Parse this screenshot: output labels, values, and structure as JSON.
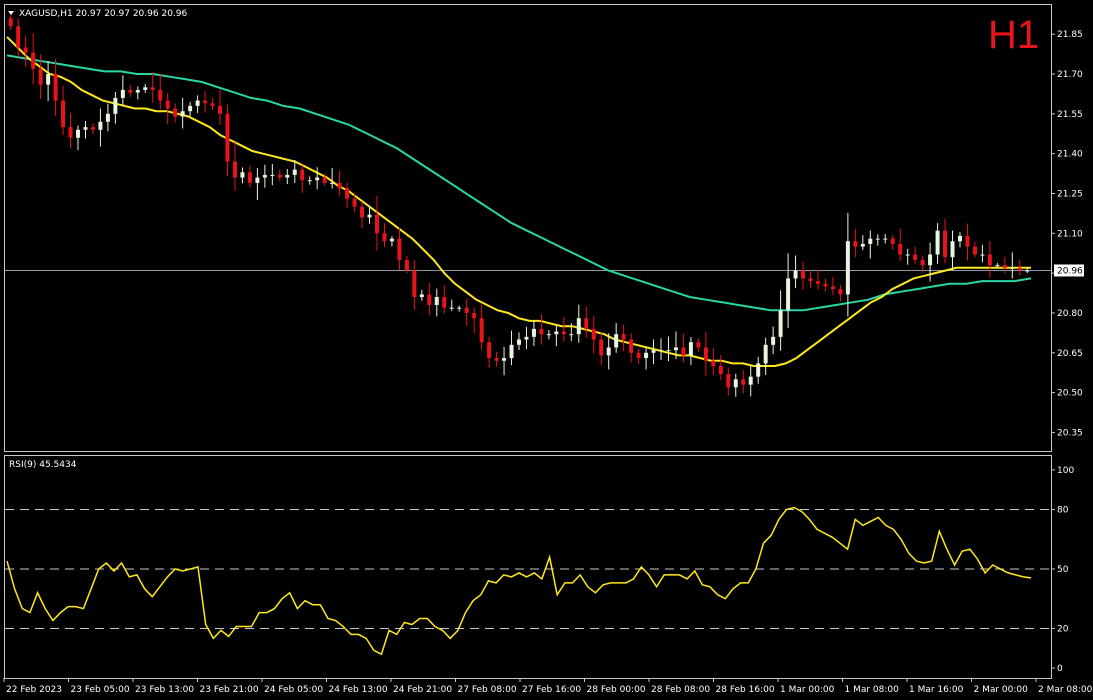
{
  "header": {
    "symbol_line": "XAGUSD,H1  20.97 20.97 20.96 20.96",
    "timeframe_badge": "H1",
    "rsi_label": "RSI(9) 45.5434"
  },
  "colors": {
    "background": "#000000",
    "bull_candle": "#e8f5e0",
    "bear_candle": "#e8141a",
    "ma_fast": "#ffe81a",
    "ma_slow": "#28d6a8",
    "rsi_line": "#ffe81a",
    "current_price_line": "#8c9aa8",
    "timeframe_badge": "#e8141a"
  },
  "chart_data": [
    {
      "type": "candlestick",
      "symbol": "XAGUSD",
      "timeframe": "H1",
      "ylim": [
        20.28,
        21.96
      ],
      "y_ticks": [
        "21.85",
        "21.70",
        "21.55",
        "21.40",
        "21.25",
        "21.10",
        "20.95",
        "20.80",
        "20.65",
        "20.50",
        "20.35"
      ],
      "current_price": "20.96",
      "x_ticks": [
        "22 Feb 2023",
        "23 Feb 05:00",
        "23 Feb 13:00",
        "23 Feb 21:00",
        "24 Feb 05:00",
        "24 Feb 13:00",
        "24 Feb 21:00",
        "27 Feb 08:00",
        "27 Feb 16:00",
        "28 Feb 00:00",
        "28 Feb 08:00",
        "28 Feb 16:00",
        "1 Mar 00:00",
        "1 Mar 08:00",
        "1 Mar 16:00",
        "2 Mar 00:00",
        "2 Mar 08:00"
      ],
      "close": [
        21.88,
        21.8,
        21.78,
        21.72,
        21.66,
        21.7,
        21.6,
        21.5,
        21.46,
        21.49,
        21.5,
        21.49,
        21.52,
        21.55,
        21.61,
        21.64,
        21.63,
        21.64,
        21.65,
        21.64,
        21.6,
        21.57,
        21.54,
        21.56,
        21.58,
        21.6,
        21.59,
        21.58,
        21.55,
        21.37,
        21.31,
        21.33,
        21.29,
        21.31,
        21.32,
        21.32,
        21.31,
        21.32,
        21.34,
        21.3,
        21.3,
        21.31,
        21.29,
        21.29,
        21.27,
        21.23,
        21.2,
        21.16,
        21.17,
        21.1,
        21.07,
        21.08,
        21.0,
        20.96,
        20.86,
        20.87,
        20.83,
        20.86,
        20.82,
        20.82,
        20.82,
        20.8,
        20.78,
        20.69,
        20.63,
        20.62,
        20.63,
        20.68,
        20.7,
        20.71,
        20.74,
        20.72,
        20.72,
        20.73,
        20.72,
        20.72,
        20.78,
        20.74,
        20.7,
        20.64,
        20.67,
        20.72,
        20.7,
        20.65,
        20.63,
        20.65,
        20.66,
        20.66,
        20.66,
        20.67,
        20.64,
        20.69,
        20.67,
        20.62,
        20.6,
        20.57,
        20.52,
        20.55,
        20.53,
        20.56,
        20.61,
        20.68,
        20.71,
        20.81,
        20.93,
        20.96,
        20.93,
        20.92,
        20.91,
        20.9,
        20.89,
        20.87,
        21.07,
        21.05,
        21.06,
        21.08,
        21.08,
        21.08,
        21.06,
        21.02,
        21.02,
        21.0,
        20.98,
        21.02,
        21.11,
        21.01,
        21.07,
        21.09,
        21.05,
        21.02,
        21.02,
        20.98,
        20.98,
        20.97,
        20.97,
        20.96,
        20.96
      ],
      "series": [
        {
          "name": "",
          "type": "line",
          "values": [
            21.84,
            21.8,
            21.76,
            21.73,
            21.7,
            21.69,
            21.67,
            21.64,
            21.62,
            21.6,
            21.59,
            21.58,
            21.57,
            21.57,
            21.56,
            21.56,
            21.55,
            21.54,
            21.52,
            21.5,
            21.47,
            21.45,
            21.43,
            21.41,
            21.4,
            21.39,
            21.38,
            21.37,
            21.35,
            21.33,
            21.31,
            21.28,
            21.26,
            21.23,
            21.2,
            21.17,
            21.14,
            21.11,
            21.08,
            21.04,
            21.0,
            20.95,
            20.91,
            20.88,
            20.85,
            20.83,
            20.81,
            20.8,
            20.78,
            20.77,
            20.77,
            20.76,
            20.75,
            20.75,
            20.74,
            20.73,
            20.72,
            20.7,
            20.69,
            20.68,
            20.67,
            20.66,
            20.65,
            20.64,
            20.64,
            20.63,
            20.62,
            20.62,
            20.61,
            20.61,
            20.6,
            20.6,
            20.6,
            20.61,
            20.63,
            20.66,
            20.69,
            20.72,
            20.75,
            20.78,
            20.81,
            20.84,
            20.86,
            20.89,
            20.91,
            20.93,
            20.94,
            20.95,
            20.96,
            20.97,
            20.97,
            20.97,
            20.97,
            20.97,
            20.97,
            20.97,
            20.97
          ]
        },
        {
          "name": "",
          "type": "line",
          "values": [
            21.77,
            21.76,
            21.75,
            21.74,
            21.73,
            21.72,
            21.71,
            21.71,
            21.7,
            21.7,
            21.69,
            21.68,
            21.67,
            21.65,
            21.63,
            21.61,
            21.6,
            21.58,
            21.57,
            21.55,
            21.53,
            21.51,
            21.48,
            21.45,
            21.42,
            21.38,
            21.34,
            21.3,
            21.26,
            21.22,
            21.18,
            21.14,
            21.11,
            21.08,
            21.05,
            21.02,
            20.99,
            20.96,
            20.94,
            20.92,
            20.9,
            20.88,
            20.86,
            20.85,
            20.84,
            20.83,
            20.82,
            20.81,
            20.81,
            20.81,
            20.82,
            20.83,
            20.84,
            20.85,
            20.87,
            20.88,
            20.89,
            20.9,
            20.91,
            20.91,
            20.92,
            20.92,
            20.92,
            20.93
          ]
        }
      ]
    },
    {
      "type": "line",
      "name": "RSI(9) 45.5434",
      "ylim": [
        -5,
        107
      ],
      "y_ticks": [
        "100",
        "80",
        "50",
        "20",
        "0"
      ],
      "levels": [
        80,
        50,
        20
      ],
      "series": [
        {
          "name": "RSI(9)",
          "values": [
            54,
            40,
            30,
            28,
            38,
            30,
            24,
            28,
            31,
            31,
            30,
            40,
            50,
            53,
            49,
            53,
            46,
            47,
            40,
            36,
            41,
            46,
            50,
            49,
            50,
            51,
            22,
            15,
            19,
            16,
            21,
            21,
            21,
            28,
            28,
            30,
            35,
            38,
            30,
            34,
            32,
            32,
            25,
            24,
            21,
            17,
            17,
            15,
            9,
            7,
            19,
            17,
            23,
            22,
            25,
            25,
            21,
            19,
            15,
            19,
            28,
            34,
            37,
            44,
            43,
            47,
            46,
            48,
            46,
            48,
            45,
            56,
            37,
            43,
            43,
            47,
            41,
            38,
            42,
            43,
            43,
            43,
            45,
            51,
            47,
            41,
            47,
            47,
            47,
            45,
            49,
            42,
            41,
            37,
            35,
            40,
            43,
            43,
            50,
            63,
            67,
            75,
            80,
            81,
            79,
            75,
            70,
            68,
            66,
            63,
            60,
            75,
            72,
            74,
            76,
            72,
            70,
            65,
            58,
            54,
            53,
            54,
            69,
            60,
            52,
            59,
            60,
            55,
            48,
            52,
            50,
            48,
            47,
            46,
            45.5
          ]
        }
      ]
    }
  ]
}
